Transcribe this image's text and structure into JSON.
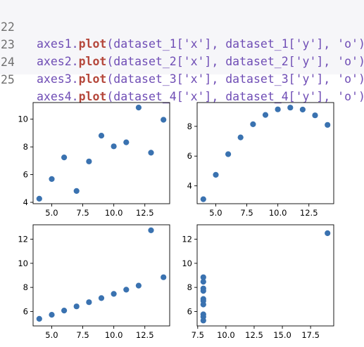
{
  "code": {
    "lines": [
      {
        "num": "22",
        "obj": "axes1",
        "fn": "plot",
        "args": "(dataset_1['x'], dataset_1['y'], 'o')"
      },
      {
        "num": "23",
        "obj": "axes2",
        "fn": "plot",
        "args": "(dataset_2['x'], dataset_2['y'], 'o')"
      },
      {
        "num": "24",
        "obj": "axes3",
        "fn": "plot",
        "args": "(dataset_3['x'], dataset_3['y'], 'o')"
      },
      {
        "num": "25",
        "obj": "axes4",
        "fn": "plot",
        "args": "(dataset_4['x'], dataset_4['y'], 'o')"
      }
    ]
  },
  "chart_data": [
    {
      "type": "scatter",
      "color": "#3a72b0",
      "xlim": [
        3.5,
        14.5
      ],
      "ylim": [
        3.9,
        11.2
      ],
      "xticks": [
        5.0,
        7.5,
        10.0,
        12.5
      ],
      "xtick_labels": [
        "5.0",
        "7.5",
        "10.0",
        "12.5"
      ],
      "yticks": [
        4,
        6,
        8,
        10
      ],
      "ytick_labels": [
        "4",
        "6",
        "8",
        "10"
      ],
      "x": [
        10,
        8,
        13,
        9,
        11,
        14,
        6,
        4,
        12,
        7,
        5
      ],
      "y": [
        8.04,
        6.95,
        7.58,
        8.81,
        8.33,
        9.96,
        7.24,
        4.26,
        10.84,
        4.82,
        5.68
      ]
    },
    {
      "type": "scatter",
      "color": "#3a72b0",
      "xlim": [
        3.5,
        14.5
      ],
      "ylim": [
        2.8,
        9.6
      ],
      "xticks": [
        5.0,
        7.5,
        10.0,
        12.5
      ],
      "xtick_labels": [
        "5.0",
        "7.5",
        "10.0",
        "12.5"
      ],
      "yticks": [
        4,
        6,
        8
      ],
      "ytick_labels": [
        "4",
        "6",
        "8"
      ],
      "x": [
        10,
        8,
        13,
        9,
        11,
        14,
        6,
        4,
        12,
        7,
        5
      ],
      "y": [
        9.14,
        8.14,
        8.74,
        8.77,
        9.26,
        8.1,
        6.13,
        3.1,
        9.13,
        7.26,
        4.74
      ]
    },
    {
      "type": "scatter",
      "color": "#3a72b0",
      "xlim": [
        3.5,
        14.5
      ],
      "ylim": [
        4.8,
        13.2
      ],
      "xticks": [
        5.0,
        7.5,
        10.0,
        12.5
      ],
      "xtick_labels": [
        "5.0",
        "7.5",
        "10.0",
        "12.5"
      ],
      "yticks": [
        6,
        8,
        10,
        12
      ],
      "ytick_labels": [
        "6",
        "8",
        "10",
        "12"
      ],
      "x": [
        10,
        8,
        13,
        9,
        11,
        14,
        6,
        4,
        12,
        7,
        5
      ],
      "y": [
        7.46,
        6.77,
        12.74,
        7.11,
        7.81,
        8.84,
        6.08,
        5.39,
        8.15,
        6.42,
        5.73
      ]
    },
    {
      "type": "scatter",
      "color": "#3a72b0",
      "xlim": [
        7.45,
        19.55
      ],
      "ylim": [
        4.8,
        13.2
      ],
      "xticks": [
        7.5,
        10.0,
        12.5,
        15.0,
        17.5
      ],
      "xtick_labels": [
        "7.5",
        "10.0",
        "12.5",
        "15.0",
        "17.5"
      ],
      "yticks": [
        6,
        8,
        10,
        12
      ],
      "ytick_labels": [
        "6",
        "8",
        "10",
        "12"
      ],
      "x": [
        8,
        8,
        8,
        8,
        8,
        8,
        8,
        19,
        8,
        8,
        8
      ],
      "y": [
        6.58,
        5.76,
        7.71,
        8.84,
        8.47,
        7.04,
        5.25,
        12.5,
        5.56,
        7.91,
        6.89
      ]
    }
  ]
}
